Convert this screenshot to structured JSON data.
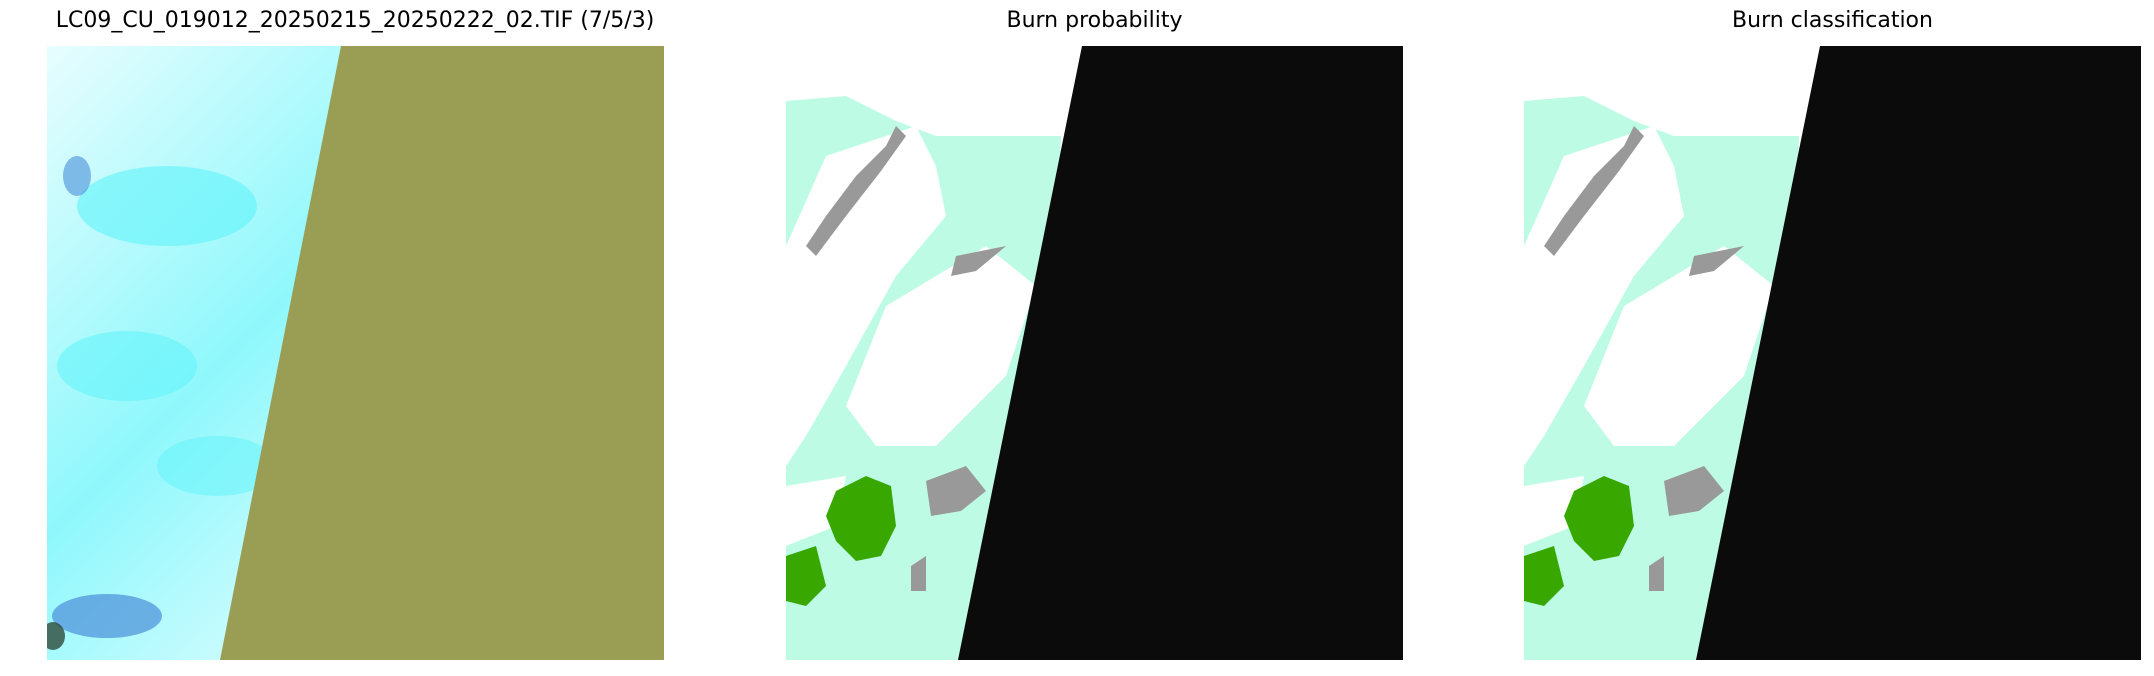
{
  "panels": [
    {
      "title": "LC09_CU_019012_20250215_20250222_02.TIF (7/5/3)",
      "type": "false-color-composite"
    },
    {
      "title": "Burn probability",
      "type": "raster-map"
    },
    {
      "title": "Burn classification",
      "type": "raster-map"
    }
  ],
  "colors": {
    "cloud_cyan": "#5FF4FA",
    "cloud_white": "#E8FDFE",
    "nodata_olive": "#9A9E55",
    "nodata_black": "#0B0B0B",
    "background_mint": "#BDFBE5",
    "unburned_grey": "#999999",
    "burned_green": "#38A800",
    "cloud_blue": "#4A8FD8"
  }
}
